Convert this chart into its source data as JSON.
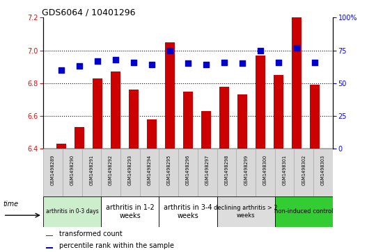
{
  "title": "GDS6064 / 10401296",
  "samples": [
    "GSM1498289",
    "GSM1498290",
    "GSM1498291",
    "GSM1498292",
    "GSM1498293",
    "GSM1498294",
    "GSM1498295",
    "GSM1498296",
    "GSM1498297",
    "GSM1498298",
    "GSM1498299",
    "GSM1498300",
    "GSM1498301",
    "GSM1498302",
    "GSM1498303"
  ],
  "bar_values": [
    6.43,
    6.53,
    6.83,
    6.87,
    6.76,
    6.58,
    7.05,
    6.75,
    6.63,
    6.78,
    6.73,
    6.97,
    6.85,
    7.22,
    6.79
  ],
  "dot_values": [
    60,
    63,
    67,
    68,
    66,
    64,
    75,
    65,
    64,
    66,
    65,
    75,
    66,
    77,
    66
  ],
  "bar_color": "#cc0000",
  "dot_color": "#0000cc",
  "ylim_left": [
    6.4,
    7.2
  ],
  "ylim_right": [
    0,
    100
  ],
  "yticks_left": [
    6.4,
    6.6,
    6.8,
    7.0,
    7.2
  ],
  "yticks_right": [
    0,
    25,
    50,
    75,
    100
  ],
  "ytick_labels_right": [
    "0",
    "25",
    "50",
    "75",
    "100%"
  ],
  "groups": [
    {
      "label": "arthritis in 0-3 days",
      "start": 0,
      "end": 3,
      "color": "#cceecc",
      "fontsize": 5.5
    },
    {
      "label": "arthritis in 1-2\nweeks",
      "start": 3,
      "end": 6,
      "color": "#ffffff",
      "fontsize": 7
    },
    {
      "label": "arthritis in 3-4\nweeks",
      "start": 6,
      "end": 9,
      "color": "#ffffff",
      "fontsize": 7
    },
    {
      "label": "declining arthritis > 2\nweeks",
      "start": 9,
      "end": 12,
      "color": "#dddddd",
      "fontsize": 6
    },
    {
      "label": "non-induced control",
      "start": 12,
      "end": 15,
      "color": "#33cc33",
      "fontsize": 6
    }
  ],
  "legend_bar_label": "transformed count",
  "legend_dot_label": "percentile rank within the sample",
  "grid_lines": [
    6.6,
    6.8,
    7.0
  ],
  "bar_width": 0.55,
  "dot_size": 28,
  "sample_box_color": "#d8d8d8",
  "sample_box_edgecolor": "#aaaaaa"
}
